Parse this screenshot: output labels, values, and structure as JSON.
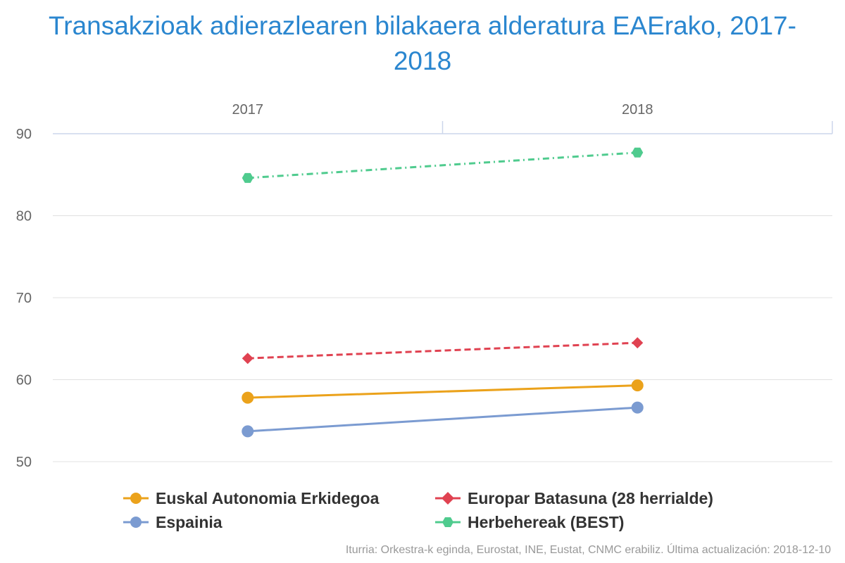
{
  "chart_data": {
    "type": "line",
    "title": "Transakzioak adierazlearen bilakaera alderatura EAErako, 2017-2018",
    "categories": [
      "2017",
      "2018"
    ],
    "xlabel": "",
    "ylabel": "",
    "ylim": [
      50,
      90
    ],
    "yticks": [
      "50",
      "60",
      "70",
      "80",
      "90"
    ],
    "grid": true,
    "x_axis_position": "top",
    "legend_position": "bottom",
    "series": [
      {
        "name": "Euskal Autonomia Erkidegoa",
        "values": [
          57.8,
          59.3
        ],
        "color": "#eba21b",
        "marker": "circle",
        "dash": "solid"
      },
      {
        "name": "Europar Batasuna (28 herrialde)",
        "values": [
          62.6,
          64.5
        ],
        "color": "#e04251",
        "marker": "diamond",
        "dash": "dashed"
      },
      {
        "name": "Espainia",
        "values": [
          53.7,
          56.6
        ],
        "color": "#7b9bd1",
        "marker": "circle",
        "dash": "solid"
      },
      {
        "name": "Herbehereak (BEST)",
        "values": [
          84.6,
          87.7
        ],
        "color": "#4fcb8e",
        "marker": "hexagon",
        "dash": "dashdot"
      }
    ]
  },
  "source": "Iturria: Orkestra-k eginda, Eurostat, INE, Eustat, CNMC erabiliz. Última actualización: 2018-12-10"
}
